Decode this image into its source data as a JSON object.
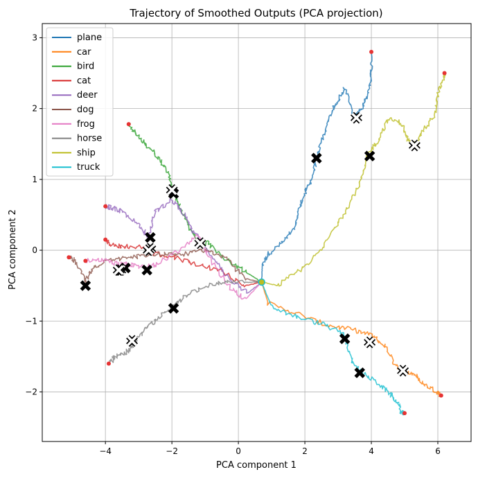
{
  "chart_data": {
    "type": "line",
    "title": "Trajectory of Smoothed Outputs (PCA projection)",
    "xlabel": "PCA component 1",
    "ylabel": "PCA component 2",
    "xlim": [
      -5.9,
      7.0
    ],
    "ylim": [
      -2.7,
      3.2
    ],
    "xticks": [
      -4,
      -2,
      0,
      2,
      4,
      6
    ],
    "yticks": [
      -2,
      -1,
      0,
      1,
      2,
      3
    ],
    "xtick_labels": [
      "−4",
      "−2",
      "0",
      "2",
      "4",
      "6"
    ],
    "ytick_labels": [
      "−2",
      "−1",
      "0",
      "1",
      "2",
      "3"
    ],
    "grid": true,
    "legend_position": "top-left",
    "start_point": [
      0.7,
      -0.45
    ],
    "series": [
      {
        "name": "plane",
        "color": "#1f77b4",
        "path": [
          [
            0.7,
            -0.45
          ],
          [
            0.72,
            -0.2
          ],
          [
            0.9,
            -0.05
          ],
          [
            1.3,
            0.1
          ],
          [
            1.7,
            0.3
          ],
          [
            1.8,
            0.55
          ],
          [
            2.0,
            0.8
          ],
          [
            2.2,
            1.0
          ],
          [
            2.35,
            1.3
          ],
          [
            2.55,
            1.6
          ],
          [
            2.8,
            1.95
          ],
          [
            3.0,
            2.1
          ],
          [
            3.2,
            2.3
          ],
          [
            3.5,
            1.87
          ],
          [
            3.7,
            2.0
          ],
          [
            3.9,
            2.2
          ],
          [
            4.0,
            2.5
          ],
          [
            4.0,
            2.8
          ]
        ],
        "markers": [
          [
            2.35,
            1.3
          ],
          [
            3.55,
            1.87
          ]
        ]
      },
      {
        "name": "car",
        "color": "#ff7f0e",
        "path": [
          [
            0.7,
            -0.45
          ],
          [
            0.9,
            -0.75
          ],
          [
            1.8,
            -0.9
          ],
          [
            2.6,
            -1.05
          ],
          [
            3.4,
            -1.12
          ],
          [
            4.0,
            -1.2
          ],
          [
            4.4,
            -1.35
          ],
          [
            4.7,
            -1.6
          ],
          [
            4.95,
            -1.7
          ],
          [
            5.3,
            -1.75
          ],
          [
            5.6,
            -1.9
          ],
          [
            6.0,
            -2.0
          ],
          [
            6.1,
            -2.05
          ]
        ],
        "markers": [
          [
            3.2,
            -1.25
          ],
          [
            3.95,
            -1.3
          ],
          [
            4.95,
            -1.7
          ]
        ]
      },
      {
        "name": "bird",
        "color": "#2ca02c",
        "path": [
          [
            0.7,
            -0.45
          ],
          [
            0.2,
            -0.3
          ],
          [
            -0.3,
            -0.15
          ],
          [
            -0.9,
            0.1
          ],
          [
            -1.2,
            0.1
          ],
          [
            -1.5,
            0.35
          ],
          [
            -1.8,
            0.65
          ],
          [
            -2.0,
            0.85
          ],
          [
            -2.1,
            1.1
          ],
          [
            -2.4,
            1.3
          ],
          [
            -2.8,
            1.5
          ],
          [
            -3.1,
            1.65
          ],
          [
            -3.3,
            1.78
          ]
        ],
        "markers": [
          [
            -1.95,
            0.8
          ],
          [
            -2.0,
            0.85
          ],
          [
            -1.15,
            0.1
          ]
        ]
      },
      {
        "name": "cat",
        "color": "#d62728",
        "path": [
          [
            0.7,
            -0.45
          ],
          [
            0.2,
            -0.5
          ],
          [
            -0.5,
            -0.3
          ],
          [
            -1.2,
            -0.2
          ],
          [
            -1.9,
            -0.1
          ],
          [
            -2.5,
            -0.05
          ],
          [
            -3.0,
            0.05
          ],
          [
            -3.5,
            0.05
          ],
          [
            -3.9,
            0.1
          ],
          [
            -4.0,
            0.15
          ]
        ],
        "markers": [
          [
            -3.4,
            -0.25
          ],
          [
            -3.55,
            -0.28
          ]
        ]
      },
      {
        "name": "deer",
        "color": "#9467bd",
        "path": [
          [
            0.7,
            -0.45
          ],
          [
            0.3,
            -0.6
          ],
          [
            -0.2,
            -0.45
          ],
          [
            -0.6,
            -0.2
          ],
          [
            -1.1,
            0.1
          ],
          [
            -1.4,
            0.3
          ],
          [
            -1.6,
            0.5
          ],
          [
            -2.0,
            0.7
          ],
          [
            -2.5,
            0.55
          ],
          [
            -2.7,
            0.2
          ],
          [
            -3.0,
            0.35
          ],
          [
            -3.5,
            0.55
          ],
          [
            -3.8,
            0.6
          ],
          [
            -4.0,
            0.62
          ]
        ],
        "markers": [
          [
            -2.65,
            0.18
          ],
          [
            -2.65,
            0.02
          ],
          [
            -2.7,
            0.0
          ]
        ]
      },
      {
        "name": "dog",
        "color": "#8c564b",
        "path": [
          [
            0.7,
            -0.45
          ],
          [
            0.2,
            -0.4
          ],
          [
            -0.4,
            -0.1
          ],
          [
            -1.0,
            0.0
          ],
          [
            -1.6,
            -0.05
          ],
          [
            -2.2,
            -0.05
          ],
          [
            -2.9,
            -0.08
          ],
          [
            -3.5,
            -0.12
          ],
          [
            -4.0,
            -0.15
          ],
          [
            -4.4,
            -0.25
          ],
          [
            -4.6,
            -0.45
          ],
          [
            -4.9,
            -0.15
          ],
          [
            -5.1,
            -0.1
          ]
        ],
        "markers": [
          [
            -4.6,
            -0.5
          ]
        ]
      },
      {
        "name": "frog",
        "color": "#e377c2",
        "path": [
          [
            0.7,
            -0.45
          ],
          [
            0.2,
            -0.7
          ],
          [
            -0.3,
            -0.5
          ],
          [
            -0.9,
            -0.1
          ],
          [
            -1.2,
            0.2
          ],
          [
            -1.8,
            0.0
          ],
          [
            -2.5,
            -0.2
          ],
          [
            -2.8,
            -0.25
          ],
          [
            -3.2,
            -0.2
          ],
          [
            -3.6,
            -0.2
          ],
          [
            -4.0,
            -0.15
          ],
          [
            -4.6,
            -0.15
          ]
        ],
        "markers": [
          [
            -2.75,
            -0.28
          ],
          [
            -3.6,
            -0.28
          ]
        ]
      },
      {
        "name": "horse",
        "color": "#7f7f7f",
        "path": [
          [
            0.7,
            -0.45
          ],
          [
            0.2,
            -0.45
          ],
          [
            -0.5,
            -0.45
          ],
          [
            -1.0,
            -0.5
          ],
          [
            -1.6,
            -0.65
          ],
          [
            -2.0,
            -0.8
          ],
          [
            -2.5,
            -1.0
          ],
          [
            -2.8,
            -1.1
          ],
          [
            -3.1,
            -1.3
          ],
          [
            -3.4,
            -1.45
          ],
          [
            -3.7,
            -1.5
          ],
          [
            -3.9,
            -1.6
          ]
        ],
        "markers": [
          [
            -1.95,
            -0.82
          ],
          [
            -3.2,
            -1.28
          ]
        ]
      },
      {
        "name": "ship",
        "color": "#bcbd22",
        "path": [
          [
            0.7,
            -0.45
          ],
          [
            1.2,
            -0.5
          ],
          [
            1.8,
            -0.3
          ],
          [
            2.5,
            0.0
          ],
          [
            3.0,
            0.4
          ],
          [
            3.4,
            0.7
          ],
          [
            3.7,
            1.0
          ],
          [
            3.9,
            1.35
          ],
          [
            4.2,
            1.55
          ],
          [
            4.5,
            1.85
          ],
          [
            4.9,
            1.8
          ],
          [
            5.1,
            1.55
          ],
          [
            5.3,
            1.48
          ],
          [
            5.5,
            1.65
          ],
          [
            5.9,
            1.9
          ],
          [
            6.0,
            2.2
          ],
          [
            6.2,
            2.45
          ],
          [
            6.2,
            2.5
          ]
        ],
        "markers": [
          [
            3.95,
            1.33
          ],
          [
            5.3,
            1.48
          ]
        ]
      },
      {
        "name": "truck",
        "color": "#17becf",
        "path": [
          [
            0.7,
            -0.45
          ],
          [
            1.0,
            -0.8
          ],
          [
            1.8,
            -0.95
          ],
          [
            2.6,
            -1.05
          ],
          [
            3.2,
            -1.2
          ],
          [
            3.4,
            -1.55
          ],
          [
            3.7,
            -1.72
          ],
          [
            4.1,
            -1.85
          ],
          [
            4.5,
            -2.0
          ],
          [
            4.8,
            -2.15
          ],
          [
            4.9,
            -2.3
          ],
          [
            5.0,
            -2.3
          ]
        ],
        "markers": [
          [
            3.65,
            -1.73
          ]
        ]
      }
    ]
  }
}
